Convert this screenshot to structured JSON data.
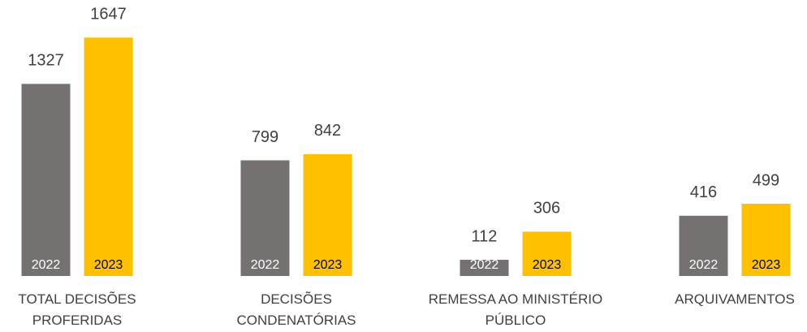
{
  "chart_data": {
    "type": "bar",
    "categories": [
      "TOTAL DECISÕES\nPROFERIDAS",
      "DECISÕES\nCONDENATÓRIAS",
      "REMESSA AO MINISTÉRIO\nPÚBLICO",
      "ARQUIVAMENTOS"
    ],
    "series": [
      {
        "name": "2022",
        "color": "#767171",
        "values": [
          1327,
          799,
          112,
          416
        ]
      },
      {
        "name": "2023",
        "color": "#ffc000",
        "values": [
          1647,
          842,
          306,
          499
        ]
      }
    ],
    "ylim": [
      0,
      1800
    ]
  }
}
